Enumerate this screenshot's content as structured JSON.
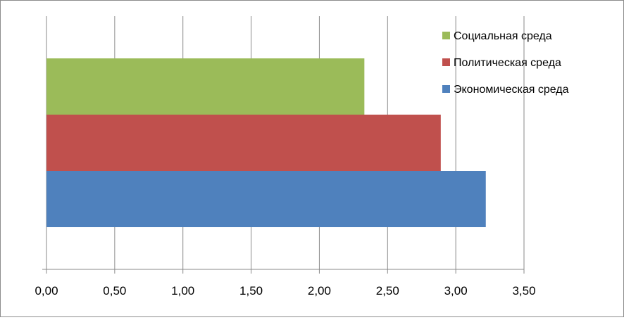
{
  "chart_data": {
    "type": "bar",
    "orientation": "horizontal",
    "categories": [
      ""
    ],
    "series": [
      {
        "name": "Экономическая среда",
        "values": [
          3.22
        ],
        "color": "#4F81BD"
      },
      {
        "name": "Политическая среда",
        "values": [
          2.89
        ],
        "color": "#C0504D"
      },
      {
        "name": "Социальная среда",
        "values": [
          2.33
        ],
        "color": "#9BBB59"
      }
    ],
    "xlim": [
      0,
      3.5
    ],
    "x_ticks": [
      "0,00",
      "0,50",
      "1,00",
      "1,50",
      "2,00",
      "2,50",
      "3,00",
      "3,50"
    ],
    "grid": true,
    "legend": {
      "placement": "top-right",
      "items": [
        {
          "label": "Социальная среда",
          "color": "#9BBB59"
        },
        {
          "label": "Политическая среда",
          "color": "#C0504D"
        },
        {
          "label": "Экономическая среда",
          "color": "#4F81BD"
        }
      ]
    }
  }
}
